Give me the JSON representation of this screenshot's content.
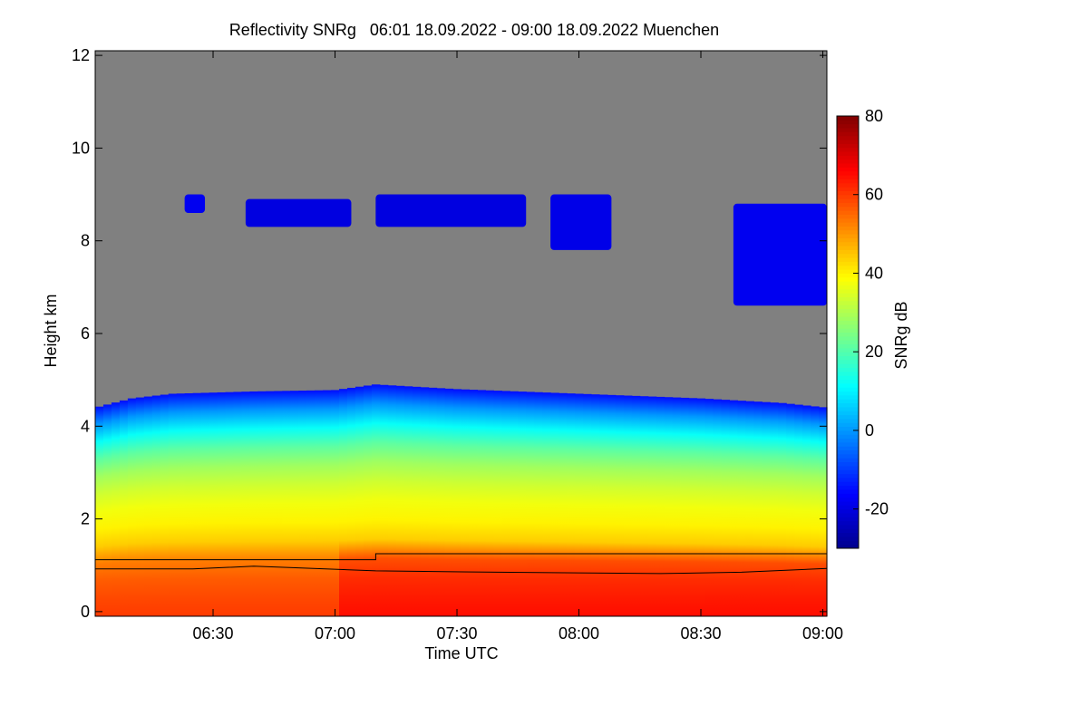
{
  "chart_data": {
    "type": "heatmap",
    "title": "Reflectivity SNRg   06:01 18.09.2022 - 09:00 18.09.2022 Muenchen",
    "xlabel": "Time UTC",
    "ylabel": "Height km",
    "colorbar_label": "SNRg dB",
    "x_range_minutes": [
      361,
      541
    ],
    "x_ticks": [
      {
        "minutes": 390,
        "label": "06:30"
      },
      {
        "minutes": 420,
        "label": "07:00"
      },
      {
        "minutes": 450,
        "label": "07:30"
      },
      {
        "minutes": 480,
        "label": "08:00"
      },
      {
        "minutes": 510,
        "label": "08:30"
      },
      {
        "minutes": 540,
        "label": "09:00"
      }
    ],
    "ylim": [
      -0.1,
      12.1
    ],
    "y_ticks": [
      0,
      2,
      4,
      6,
      8,
      10,
      12
    ],
    "colorbar_range": [
      -30,
      80
    ],
    "colorbar_ticks": [
      -20,
      0,
      20,
      40,
      60,
      80
    ],
    "colors": {
      "no_signal": "#808080",
      "colormap": [
        "#00008c",
        "#0000ff",
        "#0080ff",
        "#00ffff",
        "#80ff80",
        "#ffff00",
        "#ff8000",
        "#ff0000",
        "#800000"
      ]
    },
    "main_layer": {
      "top_km": [
        {
          "t": 361,
          "h": 4.4
        },
        {
          "t": 370,
          "h": 4.6
        },
        {
          "t": 380,
          "h": 4.7
        },
        {
          "t": 400,
          "h": 4.75
        },
        {
          "t": 420,
          "h": 4.78
        },
        {
          "t": 430,
          "h": 4.9
        },
        {
          "t": 450,
          "h": 4.8
        },
        {
          "t": 480,
          "h": 4.7
        },
        {
          "t": 510,
          "h": 4.6
        },
        {
          "t": 530,
          "h": 4.5
        },
        {
          "t": 541,
          "h": 4.4
        }
      ],
      "snr_profile": [
        {
          "h": 0.0,
          "v": 60
        },
        {
          "h": 1.0,
          "v": 55
        },
        {
          "h": 1.6,
          "v": 42
        },
        {
          "h": 2.5,
          "v": 36
        },
        {
          "h": 3.3,
          "v": 26
        },
        {
          "h": 3.9,
          "v": 12
        },
        {
          "h": 4.3,
          "v": 0
        },
        {
          "h": 4.7,
          "v": -15
        }
      ]
    },
    "cirrus_segments": [
      {
        "t0": 383,
        "t1": 388,
        "base": 8.6,
        "top": 9.0,
        "v": -18
      },
      {
        "t0": 398,
        "t1": 424,
        "base": 8.3,
        "top": 8.9,
        "v": -20
      },
      {
        "t0": 430,
        "t1": 467,
        "base": 8.3,
        "top": 9.0,
        "v": -20
      },
      {
        "t0": 473,
        "t1": 488,
        "base": 7.8,
        "top": 9.0,
        "v": -19
      },
      {
        "t0": 518,
        "t1": 541,
        "base": 6.6,
        "top": 8.8,
        "v": -18
      }
    ],
    "lines": [
      {
        "name": "",
        "points": [
          {
            "t": 361,
            "h": 1.12
          },
          {
            "t": 430,
            "h": 1.12
          },
          {
            "t": 430,
            "h": 1.25
          },
          {
            "t": 541,
            "h": 1.25
          }
        ]
      },
      {
        "name": "",
        "points": [
          {
            "t": 361,
            "h": 0.92
          },
          {
            "t": 385,
            "h": 0.92
          },
          {
            "t": 400,
            "h": 0.98
          },
          {
            "t": 430,
            "h": 0.88
          },
          {
            "t": 460,
            "h": 0.85
          },
          {
            "t": 500,
            "h": 0.82
          },
          {
            "t": 520,
            "h": 0.85
          },
          {
            "t": 541,
            "h": 0.93
          }
        ]
      }
    ]
  }
}
